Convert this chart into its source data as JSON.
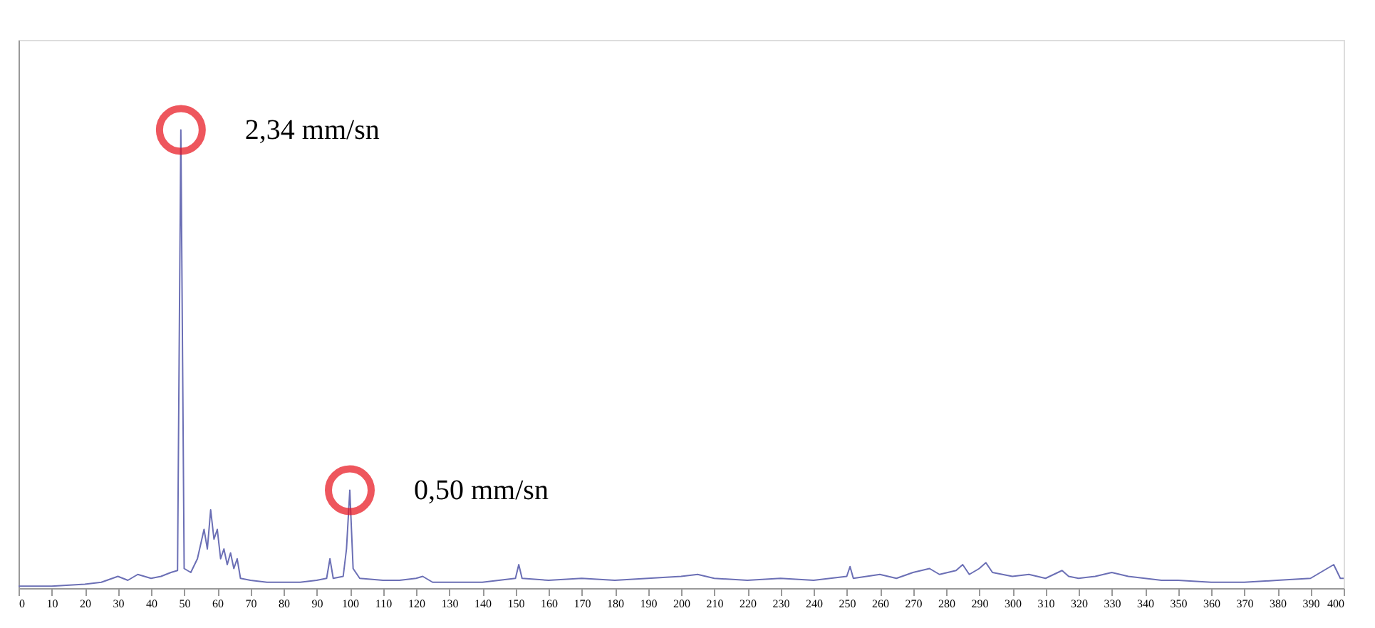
{
  "chart_data": {
    "type": "line",
    "tick_labels": "x",
    "grid": false,
    "marker": "none",
    "line_style": "solid",
    "xlim": [
      0,
      400
    ],
    "xticks": [
      0,
      10,
      20,
      30,
      40,
      50,
      60,
      70,
      80,
      90,
      100,
      110,
      120,
      130,
      140,
      150,
      160,
      170,
      180,
      190,
      200,
      210,
      220,
      230,
      240,
      250,
      260,
      270,
      280,
      290,
      300,
      310,
      320,
      330,
      340,
      350,
      360,
      370,
      380,
      390,
      400
    ],
    "ylim": [
      0,
      2.8
    ],
    "series": [
      {
        "color": "#6b6fb5",
        "x": [
          0,
          10,
          20,
          25,
          30,
          33,
          36,
          40,
          43,
          46,
          48,
          49,
          50,
          52,
          54,
          56,
          57,
          58,
          59,
          60,
          61,
          62,
          63,
          64,
          65,
          66,
          67,
          70,
          75,
          80,
          85,
          90,
          93,
          94,
          95,
          98,
          99,
          100,
          101,
          103,
          110,
          115,
          120,
          122,
          125,
          130,
          140,
          145,
          150,
          151,
          152,
          160,
          170,
          180,
          190,
          200,
          205,
          210,
          220,
          230,
          240,
          250,
          251,
          252,
          260,
          265,
          270,
          275,
          278,
          283,
          285,
          287,
          290,
          292,
          294,
          300,
          305,
          310,
          315,
          317,
          320,
          325,
          330,
          335,
          340,
          345,
          350,
          360,
          370,
          380,
          390,
          397,
          399,
          400
        ],
        "values": [
          0.01,
          0.01,
          0.02,
          0.03,
          0.06,
          0.04,
          0.07,
          0.05,
          0.06,
          0.08,
          0.09,
          2.34,
          0.1,
          0.08,
          0.15,
          0.3,
          0.2,
          0.4,
          0.25,
          0.3,
          0.15,
          0.2,
          0.12,
          0.18,
          0.1,
          0.15,
          0.05,
          0.04,
          0.03,
          0.03,
          0.03,
          0.04,
          0.05,
          0.15,
          0.05,
          0.06,
          0.2,
          0.5,
          0.1,
          0.05,
          0.04,
          0.04,
          0.05,
          0.06,
          0.03,
          0.03,
          0.03,
          0.04,
          0.05,
          0.12,
          0.05,
          0.04,
          0.05,
          0.04,
          0.05,
          0.06,
          0.07,
          0.05,
          0.04,
          0.05,
          0.04,
          0.06,
          0.11,
          0.05,
          0.07,
          0.05,
          0.08,
          0.1,
          0.07,
          0.09,
          0.12,
          0.07,
          0.1,
          0.13,
          0.08,
          0.06,
          0.07,
          0.05,
          0.09,
          0.06,
          0.05,
          0.06,
          0.08,
          0.06,
          0.05,
          0.04,
          0.04,
          0.03,
          0.03,
          0.04,
          0.05,
          0.12,
          0.05,
          0.05
        ],
        "value_labels": [
          null,
          null,
          null,
          null,
          null,
          null,
          null,
          null,
          null,
          null,
          null,
          "2,34 mm/sn",
          null,
          null,
          null,
          null,
          null,
          null,
          null,
          null,
          null,
          null,
          null,
          null,
          null,
          null,
          null,
          null,
          null,
          null,
          null,
          null,
          null,
          null,
          null,
          null,
          null,
          "0,50 mm/sn",
          null,
          null,
          null,
          null,
          null,
          null,
          null,
          null,
          null,
          null,
          null,
          null,
          null,
          null,
          null,
          null,
          null,
          null,
          null,
          null,
          null,
          null,
          null,
          null,
          null,
          null,
          null,
          null,
          null,
          null,
          null,
          null,
          null,
          null,
          null,
          null,
          null,
          null,
          null,
          null,
          null,
          null,
          null,
          null,
          null,
          null,
          null,
          null,
          null,
          null,
          null,
          null,
          null,
          null,
          null,
          null
        ]
      }
    ]
  }
}
